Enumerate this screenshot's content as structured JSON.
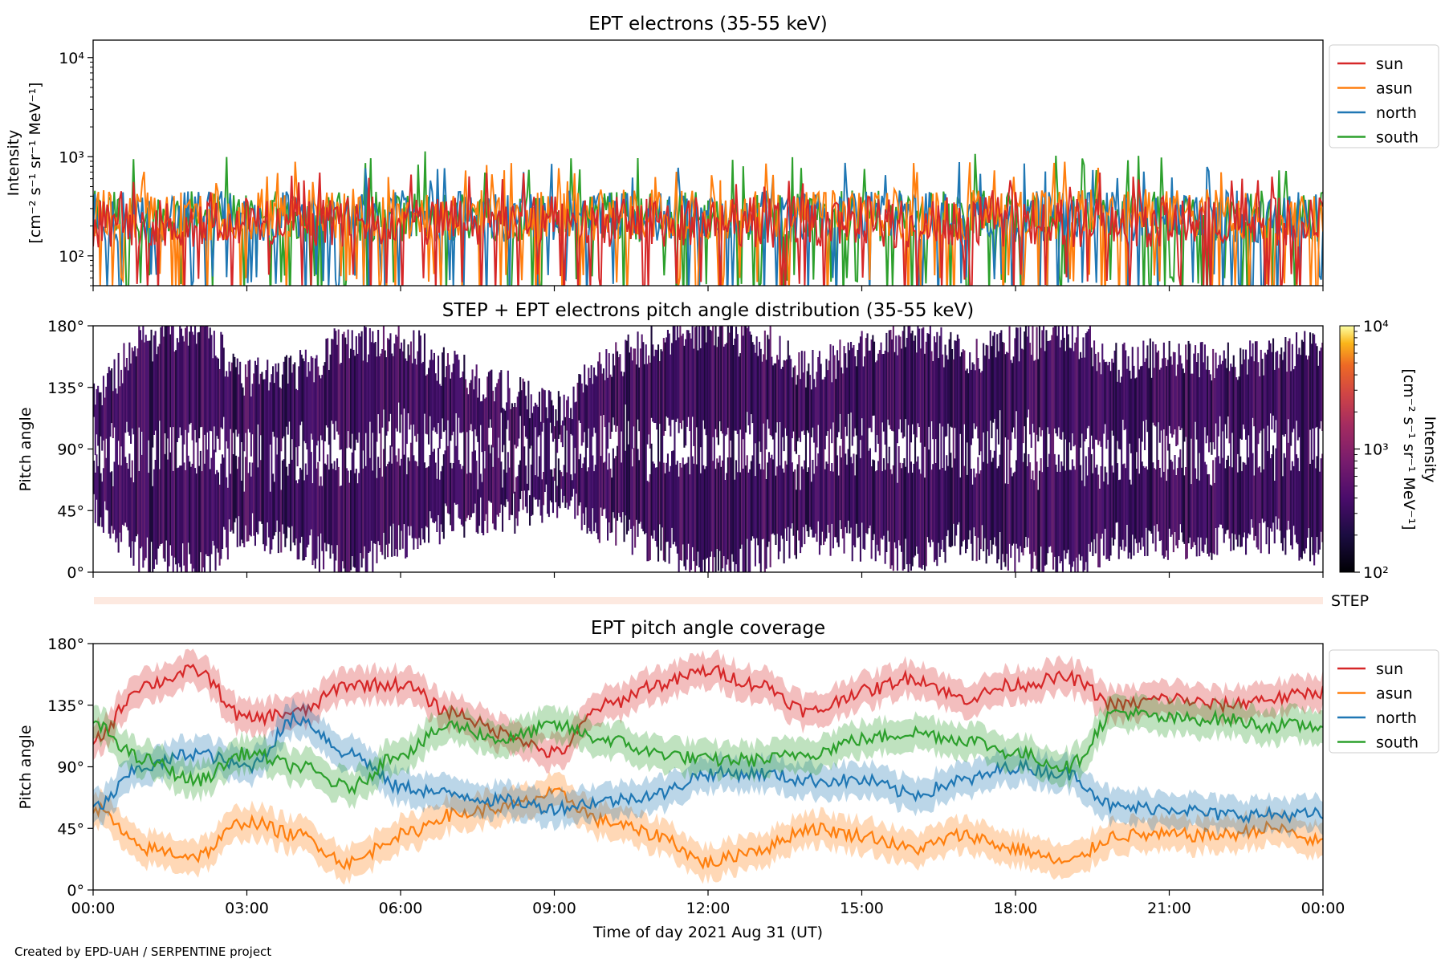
{
  "credit": "Created by EPD-UAH / SERPENTINE project",
  "colors": {
    "sun": "#d62728",
    "asun": "#ff7f0e",
    "north": "#1f77b4",
    "south": "#2ca02c"
  },
  "chart_data": [
    {
      "type": "line",
      "title": "EPT electrons (35-55 keV)",
      "ylabel": "Intensity",
      "ylabel_units": "[cm⁻² s⁻¹ sr⁻¹ MeV⁻¹]",
      "yscale": "log",
      "ylim": [
        50,
        15000
      ],
      "yticks": [
        "10²",
        "10³",
        "10⁴"
      ],
      "x_range_hours": [
        0,
        24
      ],
      "legend": [
        "sun",
        "asun",
        "north",
        "south"
      ],
      "legend_position": "outside-right-top",
      "series_levels": [
        {
          "name": "sun",
          "typical": 220,
          "low": 60,
          "high": 700
        },
        {
          "name": "asun",
          "typical": 260,
          "low": 60,
          "high": 900
        },
        {
          "name": "north",
          "typical": 250,
          "low": 60,
          "high": 900
        },
        {
          "name": "south",
          "typical": 250,
          "low": 60,
          "high": 1150
        }
      ]
    },
    {
      "type": "heatmap",
      "title": "STEP + EPT electrons pitch angle distribution (35-55 keV)",
      "ylabel": "Pitch angle",
      "ylim": [
        0,
        180
      ],
      "yticks": [
        "0°",
        "45°",
        "90°",
        "135°",
        "180°"
      ],
      "colorbar_label": "Intensity",
      "colorbar_units": "[cm⁻² s⁻¹ sr⁻¹ MeV⁻¹]",
      "colorbar_ticks": [
        "10²",
        "10³",
        "10⁴"
      ],
      "colorbar_range": [
        100,
        10000
      ],
      "colormap": "inferno",
      "step_label": "STEP"
    },
    {
      "type": "line",
      "title": "EPT pitch angle coverage",
      "ylabel": "Pitch angle",
      "ylim": [
        0,
        180
      ],
      "yticks": [
        "0°",
        "45°",
        "90°",
        "135°",
        "180°"
      ],
      "xlabel": "Time of day 2021 Aug 31 (UT)",
      "xticks": [
        "00:00",
        "03:00",
        "06:00",
        "09:00",
        "12:00",
        "15:00",
        "18:00",
        "21:00",
        "00:00"
      ],
      "x_hours": [
        0,
        1,
        2,
        3,
        4,
        5,
        6,
        7,
        8,
        9,
        10,
        11,
        12,
        13,
        14,
        15,
        16,
        17,
        18,
        19,
        20,
        21,
        22,
        23,
        24
      ],
      "legend_position": "outside-right-top",
      "series": [
        {
          "name": "sun",
          "values": [
            110,
            150,
            160,
            125,
            130,
            150,
            150,
            130,
            115,
            100,
            135,
            150,
            160,
            150,
            130,
            145,
            155,
            140,
            150,
            155,
            135,
            140,
            135,
            140,
            145
          ]
        },
        {
          "name": "asun",
          "values": [
            60,
            30,
            25,
            50,
            40,
            20,
            40,
            55,
            60,
            70,
            50,
            40,
            20,
            30,
            45,
            40,
            30,
            40,
            30,
            20,
            40,
            40,
            40,
            45,
            35
          ]
        },
        {
          "name": "north",
          "values": [
            60,
            90,
            100,
            90,
            125,
            100,
            75,
            70,
            65,
            60,
            65,
            70,
            85,
            85,
            80,
            80,
            70,
            80,
            90,
            85,
            60,
            60,
            55,
            55,
            55
          ]
        },
        {
          "name": "south",
          "values": [
            120,
            95,
            80,
            100,
            90,
            75,
            100,
            120,
            110,
            120,
            110,
            100,
            95,
            95,
            100,
            110,
            115,
            110,
            100,
            90,
            130,
            125,
            125,
            120,
            120
          ]
        }
      ],
      "shaded_halfwidth_deg": 12
    }
  ]
}
